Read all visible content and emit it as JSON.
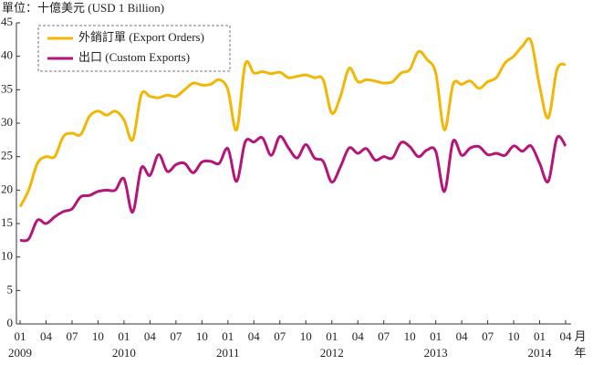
{
  "chart_data": {
    "type": "line",
    "y_label": "單位：十億美元 (USD 1 Billion)",
    "x_unit_month": "月",
    "x_unit_year": "年",
    "categories": [
      "01",
      null,
      null,
      "04",
      null,
      null,
      "07",
      null,
      null,
      "10",
      null,
      null,
      "01",
      null,
      null,
      "04",
      null,
      null,
      "07",
      null,
      null,
      "10",
      null,
      null,
      "01",
      null,
      null,
      "04",
      null,
      null,
      "07",
      null,
      null,
      "10",
      null,
      null,
      "01",
      null,
      null,
      "04",
      null,
      null,
      "07",
      null,
      null,
      "10",
      null,
      null,
      "01",
      null,
      null,
      "04",
      null,
      null,
      "07",
      null,
      null,
      "10",
      null,
      null,
      "01",
      null,
      null,
      "04"
    ],
    "years": [
      "2009",
      null,
      null,
      null,
      null,
      null,
      null,
      null,
      null,
      null,
      null,
      null,
      "2010",
      null,
      null,
      null,
      null,
      null,
      null,
      null,
      null,
      null,
      null,
      null,
      "2011",
      null,
      null,
      null,
      null,
      null,
      null,
      null,
      null,
      null,
      null,
      null,
      "2012",
      null,
      null,
      null,
      null,
      null,
      null,
      null,
      null,
      null,
      null,
      null,
      "2013",
      null,
      null,
      null,
      null,
      null,
      null,
      null,
      null,
      null,
      null,
      null,
      "2014",
      null,
      null,
      null
    ],
    "series": [
      {
        "name": "外銷訂單 (Export Orders)",
        "color": "#f2b705",
        "values": [
          17.5,
          20,
          24,
          25,
          25,
          28,
          28.5,
          28.3,
          31,
          31.8,
          31.2,
          31.8,
          30.5,
          27.5,
          34.3,
          34,
          33.8,
          34.2,
          34,
          35,
          36,
          35.7,
          35.8,
          36.5,
          35,
          29,
          38.8,
          37.5,
          37.7,
          37.4,
          37.6,
          36.8,
          37,
          37.2,
          36.8,
          36.5,
          31.5,
          34,
          38.2,
          36.2,
          36.5,
          36.3,
          36,
          36.2,
          37.5,
          38,
          40.7,
          39.5,
          37.5,
          29,
          35.8,
          35.8,
          36.3,
          35.2,
          36.2,
          36.8,
          39,
          40,
          41.5,
          42.3,
          35.5,
          30.8,
          38,
          38.8
        ]
      },
      {
        "name": "出口 (Custom Exports)",
        "color": "#b5157a",
        "values": [
          12.5,
          12.7,
          15.5,
          15,
          16,
          16.8,
          17.2,
          19,
          19.2,
          19.8,
          20,
          20,
          21.7,
          16.7,
          23.3,
          22.2,
          25.3,
          22.8,
          23.8,
          24,
          22.6,
          24.2,
          24.3,
          24,
          26.2,
          21.3,
          27.2,
          27.2,
          27.8,
          25.2,
          28,
          26.3,
          24.8,
          26.8,
          24.8,
          24.3,
          21.2,
          23.5,
          26.3,
          25.5,
          26.2,
          24.5,
          25,
          24.8,
          27.1,
          26.5,
          25,
          26,
          25.8,
          19.8,
          27.3,
          25.2,
          26.3,
          26.5,
          25.3,
          25.5,
          25.2,
          26.6,
          25.8,
          26.6,
          24,
          21.3,
          27.8,
          26.6
        ]
      }
    ],
    "ylim": [
      0,
      45
    ],
    "yticks": [
      0,
      5,
      10,
      15,
      20,
      25,
      30,
      35,
      40,
      45
    ]
  }
}
